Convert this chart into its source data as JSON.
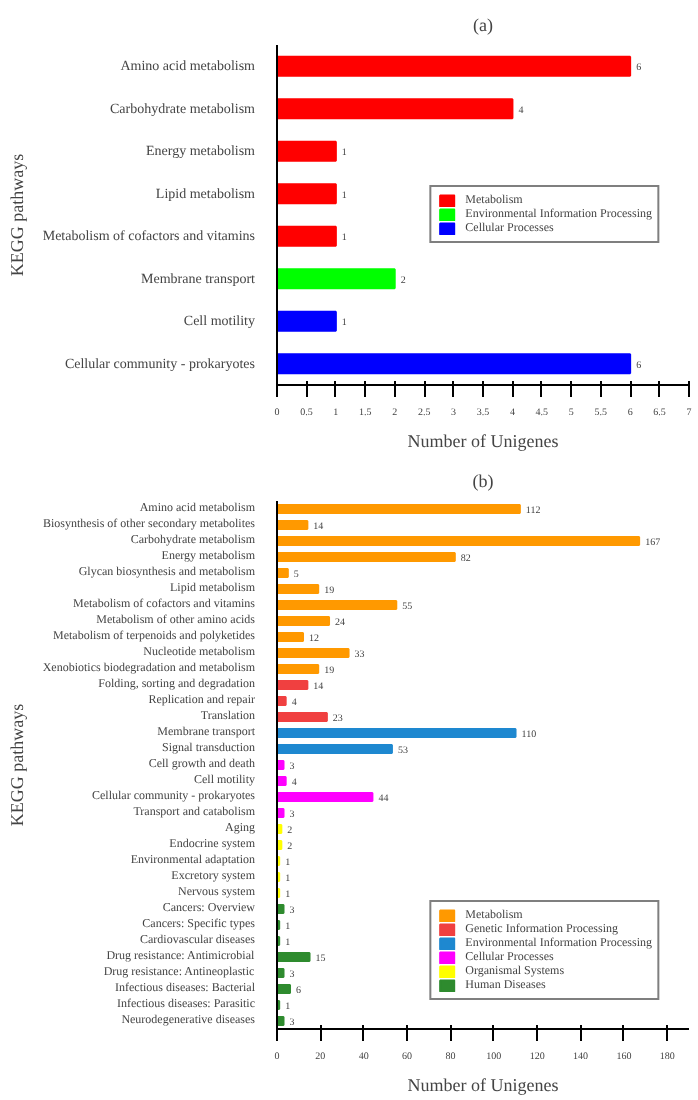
{
  "chart_data": [
    {
      "type": "bar",
      "orientation": "horizontal",
      "title": "(a)",
      "xlabel": "Number of Unigenes",
      "ylabel": "KEGG pathways",
      "categories": [
        "Amino acid metabolism",
        "Carbohydrate metabolism",
        "Energy metabolism",
        "Lipid metabolism",
        "Metabolism of cofactors and vitamins",
        "Membrane transport",
        "Cell motility",
        "Cellular community - prokaryotes"
      ],
      "series": [
        {
          "name": "Metabolism",
          "color": "#ff0000",
          "values": [
            6,
            4,
            1,
            1,
            1,
            null,
            null,
            null
          ]
        },
        {
          "name": "Environmental Information Processing",
          "color": "#00ff00",
          "values": [
            null,
            null,
            null,
            null,
            null,
            2,
            null,
            null
          ]
        },
        {
          "name": "Cellular Processes",
          "color": "#0000ff",
          "values": [
            null,
            null,
            null,
            null,
            null,
            null,
            1,
            6
          ]
        }
      ],
      "xlim": [
        0,
        7
      ],
      "xticks": [
        0,
        0.5,
        1,
        1.5,
        2,
        2.5,
        3,
        3.5,
        4,
        4.5,
        5,
        5.5,
        6,
        6.5,
        7
      ],
      "data_labels": true,
      "legend": "right",
      "grid": false
    },
    {
      "type": "bar",
      "orientation": "horizontal",
      "title": "(b)",
      "xlabel": "Number of Unigenes",
      "ylabel": "KEGG pathways",
      "categories": [
        "Amino acid metabolism",
        "Biosynthesis of other secondary metabolites",
        "Carbohydrate metabolism",
        "Energy metabolism",
        "Glycan biosynthesis and metabolism",
        "Lipid metabolism",
        "Metabolism of cofactors and vitamins",
        "Metabolism of other amino acids",
        "Metabolism of terpenoids and polyketides",
        "Nucleotide metabolism",
        "Xenobiotics biodegradation and metabolism",
        "Folding, sorting and degradation",
        "Replication and repair",
        "Translation",
        "Membrane transport",
        "Signal transduction",
        "Cell growth and death",
        "Cell motility",
        "Cellular community - prokaryotes",
        "Transport and catabolism",
        "Aging",
        "Endocrine system",
        "Environmental adaptation",
        "Excretory system",
        "Nervous system",
        "Cancers: Overview",
        "Cancers: Specific types",
        "Cardiovascular diseases",
        "Drug resistance: Antimicrobial",
        "Drug resistance: Antineoplastic",
        "Infectious diseases: Bacterial",
        "Infectious diseases: Parasitic",
        "Neurodegenerative diseases"
      ],
      "series": [
        {
          "name": "Metabolism",
          "color": "#ff9900",
          "values": [
            112,
            14,
            167,
            82,
            5,
            19,
            55,
            24,
            12,
            33,
            19,
            null,
            null,
            null,
            null,
            null,
            null,
            null,
            null,
            null,
            null,
            null,
            null,
            null,
            null,
            null,
            null,
            null,
            null,
            null,
            null,
            null,
            null
          ]
        },
        {
          "name": "Genetic Information Processing",
          "color": "#f04040",
          "values": [
            null,
            null,
            null,
            null,
            null,
            null,
            null,
            null,
            null,
            null,
            null,
            14,
            4,
            23,
            null,
            null,
            null,
            null,
            null,
            null,
            null,
            null,
            null,
            null,
            null,
            null,
            null,
            null,
            null,
            null,
            null,
            null,
            null
          ]
        },
        {
          "name": "Environmental Information Processing",
          "color": "#1e88d0",
          "values": [
            null,
            null,
            null,
            null,
            null,
            null,
            null,
            null,
            null,
            null,
            null,
            null,
            null,
            null,
            110,
            53,
            null,
            null,
            null,
            null,
            null,
            null,
            null,
            null,
            null,
            null,
            null,
            null,
            null,
            null,
            null,
            null,
            null
          ]
        },
        {
          "name": "Cellular Processes",
          "color": "#ff00ff",
          "values": [
            null,
            null,
            null,
            null,
            null,
            null,
            null,
            null,
            null,
            null,
            null,
            null,
            null,
            null,
            null,
            null,
            3,
            4,
            44,
            3,
            null,
            null,
            null,
            null,
            null,
            null,
            null,
            null,
            null,
            null,
            null,
            null,
            null
          ]
        },
        {
          "name": "Organismal Systems",
          "color": "#ffff00",
          "values": [
            null,
            null,
            null,
            null,
            null,
            null,
            null,
            null,
            null,
            null,
            null,
            null,
            null,
            null,
            null,
            null,
            null,
            null,
            null,
            null,
            2,
            2,
            1,
            1,
            1,
            null,
            null,
            null,
            null,
            null,
            null,
            null,
            null
          ]
        },
        {
          "name": "Human Diseases",
          "color": "#2e8b2e",
          "values": [
            null,
            null,
            null,
            null,
            null,
            null,
            null,
            null,
            null,
            null,
            null,
            null,
            null,
            null,
            null,
            null,
            null,
            null,
            null,
            null,
            null,
            null,
            null,
            null,
            null,
            3,
            1,
            1,
            15,
            3,
            6,
            1,
            3
          ]
        }
      ],
      "xlim": [
        0,
        190
      ],
      "xticks": [
        0,
        20,
        40,
        60,
        80,
        100,
        120,
        140,
        160,
        180
      ],
      "data_labels": true,
      "legend": "bottom right",
      "grid": false
    }
  ]
}
